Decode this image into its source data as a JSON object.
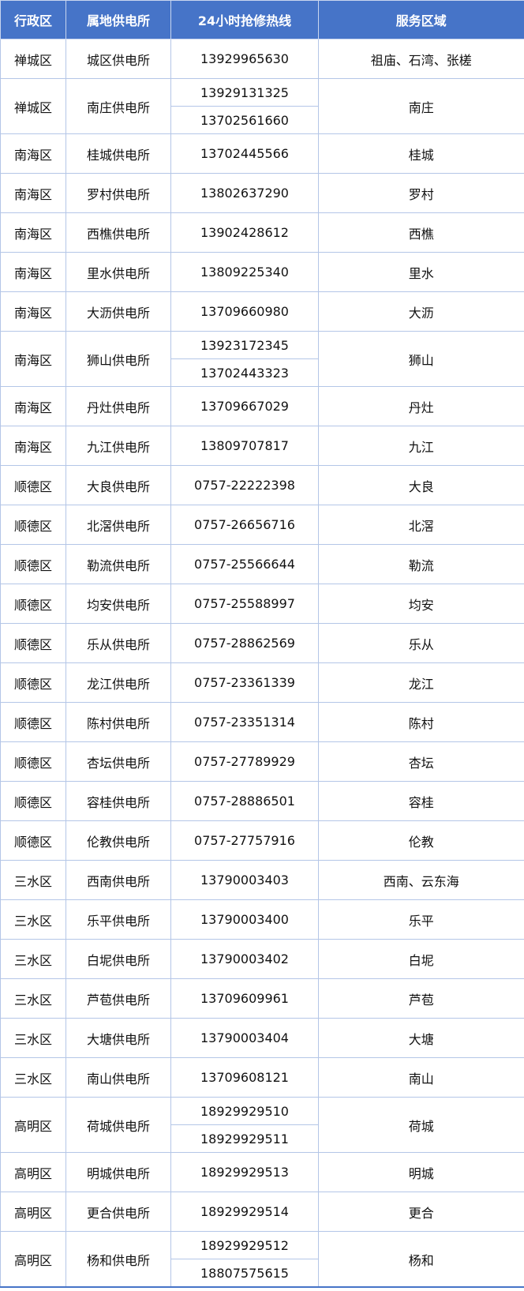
{
  "colors": {
    "header_bg": "#4674c8",
    "border": "#b4c6e7"
  },
  "headers": [
    "行政区",
    "属地供电所",
    "24小时抢修热线",
    "服务区域"
  ],
  "rows": [
    {
      "district": "禅城区",
      "station": "城区供电所",
      "phones": [
        "13929965630"
      ],
      "area": "祖庙、石湾、张槎"
    },
    {
      "district": "禅城区",
      "station": "南庄供电所",
      "phones": [
        "13929131325",
        "13702561660"
      ],
      "area": "南庄"
    },
    {
      "district": "南海区",
      "station": "桂城供电所",
      "phones": [
        "13702445566"
      ],
      "area": "桂城"
    },
    {
      "district": "南海区",
      "station": "罗村供电所",
      "phones": [
        "13802637290"
      ],
      "area": "罗村"
    },
    {
      "district": "南海区",
      "station": "西樵供电所",
      "phones": [
        "13902428612"
      ],
      "area": "西樵"
    },
    {
      "district": "南海区",
      "station": "里水供电所",
      "phones": [
        "13809225340"
      ],
      "area": "里水"
    },
    {
      "district": "南海区",
      "station": "大沥供电所",
      "phones": [
        "13709660980"
      ],
      "area": "大沥"
    },
    {
      "district": "南海区",
      "station": "狮山供电所",
      "phones": [
        "13923172345",
        "13702443323"
      ],
      "area": "狮山"
    },
    {
      "district": "南海区",
      "station": "丹灶供电所",
      "phones": [
        "13709667029"
      ],
      "area": "丹灶"
    },
    {
      "district": "南海区",
      "station": "九江供电所",
      "phones": [
        "13809707817"
      ],
      "area": "九江"
    },
    {
      "district": "顺德区",
      "station": "大良供电所",
      "phones": [
        "0757-22222398"
      ],
      "area": "大良"
    },
    {
      "district": "顺德区",
      "station": "北滘供电所",
      "phones": [
        "0757-26656716"
      ],
      "area": "北滘"
    },
    {
      "district": "顺德区",
      "station": "勒流供电所",
      "phones": [
        "0757-25566644"
      ],
      "area": "勒流"
    },
    {
      "district": "顺德区",
      "station": "均安供电所",
      "phones": [
        "0757-25588997"
      ],
      "area": "均安"
    },
    {
      "district": "顺德区",
      "station": "乐从供电所",
      "phones": [
        "0757-28862569"
      ],
      "area": "乐从"
    },
    {
      "district": "顺德区",
      "station": "龙江供电所",
      "phones": [
        "0757-23361339"
      ],
      "area": "龙江"
    },
    {
      "district": "顺德区",
      "station": "陈村供电所",
      "phones": [
        "0757-23351314"
      ],
      "area": "陈村"
    },
    {
      "district": "顺德区",
      "station": "杏坛供电所",
      "phones": [
        "0757-27789929"
      ],
      "area": "杏坛"
    },
    {
      "district": "顺德区",
      "station": "容桂供电所",
      "phones": [
        "0757-28886501"
      ],
      "area": "容桂"
    },
    {
      "district": "顺德区",
      "station": "伦教供电所",
      "phones": [
        "0757-27757916"
      ],
      "area": "伦教"
    },
    {
      "district": "三水区",
      "station": "西南供电所",
      "phones": [
        "13790003403"
      ],
      "area": "西南、云东海"
    },
    {
      "district": "三水区",
      "station": "乐平供电所",
      "phones": [
        "13790003400"
      ],
      "area": "乐平"
    },
    {
      "district": "三水区",
      "station": "白坭供电所",
      "phones": [
        "13790003402"
      ],
      "area": "白坭"
    },
    {
      "district": "三水区",
      "station": "芦苞供电所",
      "phones": [
        "13709609961"
      ],
      "area": "芦苞"
    },
    {
      "district": "三水区",
      "station": "大塘供电所",
      "phones": [
        "13790003404"
      ],
      "area": "大塘"
    },
    {
      "district": "三水区",
      "station": "南山供电所",
      "phones": [
        "13709608121"
      ],
      "area": "南山"
    },
    {
      "district": "高明区",
      "station": "荷城供电所",
      "phones": [
        "18929929510",
        "18929929511"
      ],
      "area": "荷城"
    },
    {
      "district": "高明区",
      "station": "明城供电所",
      "phones": [
        "18929929513"
      ],
      "area": "明城"
    },
    {
      "district": "高明区",
      "station": "更合供电所",
      "phones": [
        "18929929514"
      ],
      "area": "更合"
    },
    {
      "district": "高明区",
      "station": "杨和供电所",
      "phones": [
        "18929929512",
        "18807575615"
      ],
      "area": "杨和"
    }
  ]
}
